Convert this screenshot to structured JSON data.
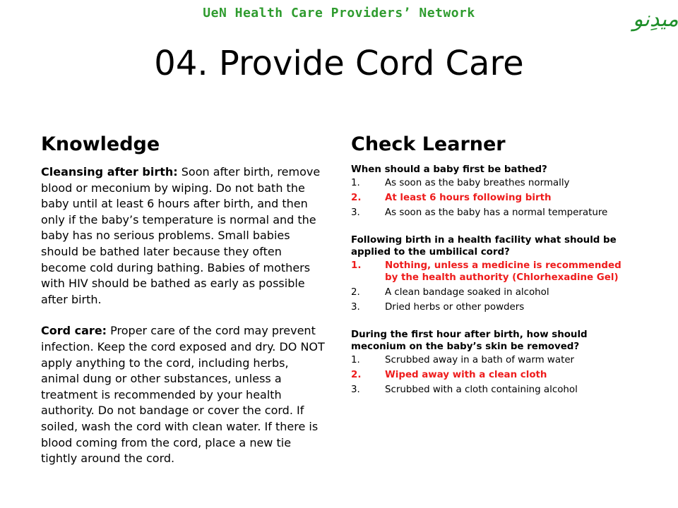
{
  "header": {
    "network": "UeN Health Care Providers’ Network",
    "logo_text": "اُمیدِنو",
    "title": "04. Provide Cord Care"
  },
  "colors": {
    "network_green": "#2e9b2e",
    "logo_green": "#1f8f2a",
    "correct_red": "#ee1c1c"
  },
  "knowledge": {
    "heading": "Knowledge",
    "paragraphs": [
      {
        "label": "Cleansing after birth:",
        "text": " Soon after birth, remove blood or meconium by wiping. Do not bath the baby until at least 6 hours after birth, and then only if the baby’s temperature is normal and the baby has no serious problems. Small babies should be bathed later because they often become cold during bathing. Babies of mothers with HIV should be bathed as early as possible after birth."
      },
      {
        "label": "Cord care:",
        "text": " Proper care of the cord may prevent infection. Keep the cord exposed and dry. DO NOT apply anything to the cord, including herbs, animal dung or other substances, unless a treatment is recommended by your health authority. Do not bandage or cover the cord. If soiled, wash the cord with clean water. If there is blood coming from the cord, place a new tie tightly around the cord."
      }
    ]
  },
  "check": {
    "heading": "Check Learner",
    "questions": [
      {
        "q": "When should a baby first be bathed?",
        "options": [
          {
            "num": "1.",
            "text": "As soon as the baby breathes normally",
            "correct": false
          },
          {
            "num": "2.",
            "text": "At least 6 hours following birth",
            "correct": true
          },
          {
            "num": "3.",
            "text": "As soon as the baby has a normal temperature",
            "correct": false
          }
        ]
      },
      {
        "q": "Following birth in a health facility what should be applied to the umbilical cord?",
        "options": [
          {
            "num": "1.",
            "text": "Nothing, unless a medicine is recommended by the health authority (Chlorhexadine Gel)",
            "correct": true
          },
          {
            "num": "2.",
            "text": "A clean bandage soaked in alcohol",
            "correct": false
          },
          {
            "num": "3.",
            "text": "Dried herbs or other powders",
            "correct": false
          }
        ]
      },
      {
        "q": "During the first hour after birth, how should meconium on the baby’s skin be removed?",
        "options": [
          {
            "num": "1.",
            "text": "Scrubbed away in a bath of warm water",
            "correct": false
          },
          {
            "num": "2.",
            "text": "Wiped away with a clean cloth",
            "correct": true
          },
          {
            "num": "3.",
            "text": "Scrubbed with a cloth containing alcohol",
            "correct": false
          }
        ]
      }
    ]
  }
}
